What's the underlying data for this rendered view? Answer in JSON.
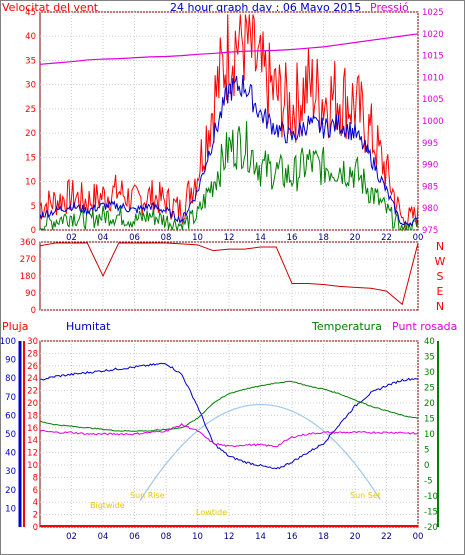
{
  "header": {
    "left_label": "Velocitat del vent",
    "title": "24 hour graph day : 06 Mayo 2015",
    "right_label": "Pressió"
  },
  "labels_bottom": {
    "rain": "Pluja",
    "humidity": "Humitat",
    "temperature": "Temperatura",
    "dew_point": "Punt rosada"
  },
  "compass": [
    "N",
    "W",
    "S",
    "E",
    "N"
  ],
  "sun_labels": {
    "bigtwilight": "Bigtwide",
    "sun_rise": "Sun Rise",
    "lowtide": "Lowtide",
    "sun_set": "Sun Set"
  },
  "colors": {
    "gust": "#ff0000",
    "wind_avg": "#0000cc",
    "wind_min": "#008000",
    "pressure": "#e000e0",
    "direction": "#cc0000",
    "rain": "#ff0000",
    "humidity": "#0000cc",
    "temperature": "#008000",
    "dew_point": "#e000e0",
    "sun": "#9fc9ee",
    "frame": "#800000"
  },
  "chart_data": [
    {
      "type": "line",
      "name": "wind-and-pressure",
      "x_ticks": [
        "02",
        "04",
        "06",
        "08",
        "10",
        "12",
        "14",
        "16",
        "18",
        "20",
        "22",
        "00"
      ],
      "y_left_ticks": [
        0,
        5,
        10,
        15,
        20,
        25,
        30,
        35,
        40,
        45
      ],
      "y_right_ticks": [
        975,
        980,
        985,
        990,
        995,
        1000,
        1005,
        1010,
        1015,
        1020,
        1025
      ],
      "ylim_left": [
        0,
        45
      ],
      "ylim_right": [
        975,
        1025
      ],
      "x_hours": [
        0,
        1,
        2,
        3,
        4,
        5,
        6,
        7,
        8,
        9,
        10,
        11,
        12,
        13,
        14,
        15,
        16,
        17,
        18,
        19,
        20,
        21,
        22,
        23,
        24
      ],
      "series": [
        {
          "name": "gust",
          "values": [
            5,
            6,
            7,
            6,
            7,
            8,
            6,
            7,
            6,
            4,
            12,
            26,
            38,
            40,
            32,
            28,
            25,
            30,
            27,
            28,
            26,
            20,
            12,
            2,
            3
          ]
        },
        {
          "name": "average",
          "values": [
            3,
            4,
            5,
            4,
            5,
            5,
            4,
            5,
            4,
            2,
            8,
            19,
            29,
            30,
            24,
            21,
            19,
            22,
            21,
            22,
            20,
            15,
            8,
            1,
            2
          ]
        },
        {
          "name": "minimum",
          "values": [
            1,
            2,
            3,
            2,
            3,
            3,
            2,
            3,
            2,
            1,
            3,
            10,
            17,
            18,
            13,
            12,
            11,
            14,
            13,
            13,
            12,
            8,
            4,
            0,
            1
          ]
        },
        {
          "name": "pressure",
          "values": [
            1013,
            1013.3,
            1013.6,
            1014,
            1014.2,
            1014.3,
            1014.5,
            1014.7,
            1014.8,
            1015,
            1015.3,
            1015.5,
            1015.8,
            1016,
            1016.1,
            1016.2,
            1016.4,
            1016.7,
            1017,
            1017.5,
            1018,
            1018.5,
            1019,
            1019.5,
            1020
          ]
        }
      ]
    },
    {
      "type": "line",
      "name": "wind-direction",
      "y_ticks": [
        360,
        270,
        180,
        90,
        0
      ],
      "ylim": [
        0,
        360
      ],
      "x_hours": [
        0,
        1,
        2,
        3,
        4,
        5,
        6,
        7,
        8,
        9,
        10,
        11,
        12,
        13,
        14,
        15,
        16,
        17,
        18,
        19,
        20,
        21,
        22,
        23,
        24
      ],
      "values": [
        340,
        355,
        355,
        355,
        180,
        355,
        355,
        355,
        355,
        350,
        345,
        320,
        320,
        325,
        330,
        330,
        140,
        140,
        135,
        125,
        120,
        115,
        100,
        30,
        355
      ]
    },
    {
      "type": "line",
      "name": "rain-humidity-temperature-dewpoint",
      "rain_ticks": [
        0,
        2,
        4,
        6,
        8,
        10,
        12,
        14,
        16,
        18,
        20,
        22,
        24,
        26,
        28,
        30
      ],
      "humidity_ticks": [
        10,
        20,
        30,
        40,
        50,
        60,
        70,
        80,
        90,
        100
      ],
      "temp_ticks": [
        -20,
        -15,
        -10,
        -5,
        0,
        5,
        10,
        15,
        20,
        25,
        30,
        35,
        40
      ],
      "rain_lim": [
        0,
        30
      ],
      "humidity_lim": [
        0,
        100
      ],
      "temp_lim": [
        -20,
        40
      ],
      "x_hours": [
        0,
        1,
        2,
        3,
        4,
        5,
        6,
        7,
        8,
        9,
        10,
        11,
        12,
        13,
        14,
        15,
        16,
        17,
        18,
        19,
        20,
        21,
        22,
        23,
        24
      ],
      "series": [
        {
          "name": "rain",
          "values": [
            0,
            0,
            0,
            0,
            0,
            0,
            0,
            0,
            0,
            0,
            0,
            0,
            0,
            0,
            0,
            0,
            0,
            0,
            0,
            0,
            0,
            0,
            0,
            0,
            0
          ]
        },
        {
          "name": "humidity",
          "values": [
            79,
            81,
            82,
            83,
            84,
            85,
            86,
            87,
            88,
            82,
            65,
            45,
            38,
            35,
            33,
            31,
            35,
            40,
            45,
            55,
            65,
            72,
            76,
            79,
            80
          ]
        },
        {
          "name": "temperature",
          "values": [
            14,
            13,
            12.5,
            12,
            11.5,
            11,
            11,
            11,
            11.5,
            12,
            15,
            20,
            23,
            24.5,
            25.5,
            26.5,
            27,
            25.5,
            24.5,
            23,
            21,
            19,
            17.5,
            16,
            15
          ]
        },
        {
          "name": "dew_point",
          "values": [
            11,
            10.5,
            10.5,
            10,
            10,
            10,
            10,
            10.5,
            11,
            13,
            11,
            7,
            6,
            6.5,
            6.5,
            6,
            9,
            10,
            10.5,
            10.5,
            10.5,
            10.5,
            10.5,
            10.5,
            10
          ]
        },
        {
          "name": "sun",
          "values": [
            -20,
            -20,
            -20,
            -20,
            -20,
            -20,
            -20,
            -15,
            -10,
            -5,
            1,
            6,
            10,
            12,
            12,
            11,
            8,
            4,
            -2,
            -9,
            -14,
            -20,
            -20,
            -20,
            -20
          ]
        }
      ]
    }
  ]
}
